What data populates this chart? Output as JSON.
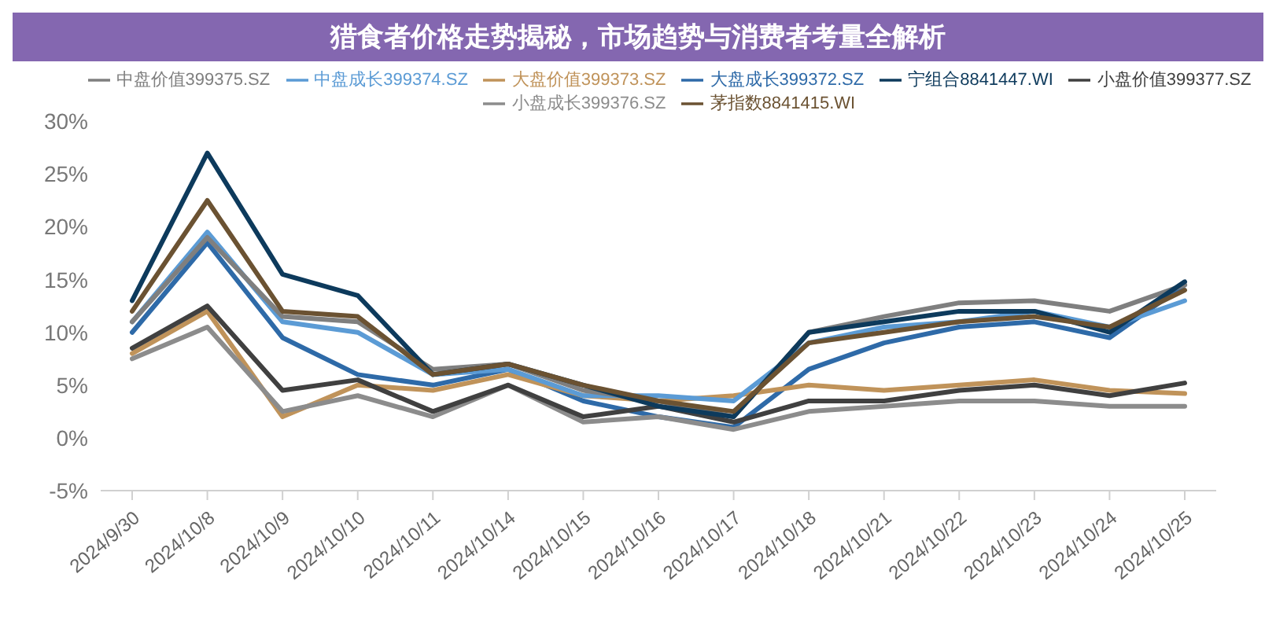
{
  "chart_data": {
    "type": "line",
    "title": "猎食者价格走势揭秘，市场趋势与消费者考量全解析",
    "categories": [
      "2024/9/30",
      "2024/10/8",
      "2024/10/9",
      "2024/10/10",
      "2024/10/11",
      "2024/10/14",
      "2024/10/15",
      "2024/10/16",
      "2024/10/17",
      "2024/10/18",
      "2024/10/21",
      "2024/10/22",
      "2024/10/23",
      "2024/10/24",
      "2024/10/25"
    ],
    "series": [
      {
        "name": "大盘成长399372.SZ",
        "color": "#2e6aa8",
        "values": [
          10,
          18.5,
          9.5,
          6,
          5,
          6.5,
          3.5,
          2,
          1,
          6.5,
          9,
          10.5,
          11,
          9.5,
          14.5
        ]
      },
      {
        "name": "大盘价值399373.SZ",
        "color": "#c0935a",
        "values": [
          8,
          12,
          2,
          5,
          4.5,
          6,
          4,
          3.5,
          4,
          5,
          4.5,
          5,
          5.5,
          4.5,
          4.2
        ]
      },
      {
        "name": "中盘成长399374.SZ",
        "color": "#5b9bd5",
        "values": [
          11,
          19.5,
          11,
          10,
          6,
          6.5,
          4,
          4,
          3.5,
          9,
          10.5,
          11,
          12,
          10.5,
          13
        ]
      },
      {
        "name": "中盘价值399375.SZ",
        "color": "#7f7f7f",
        "values": [
          11,
          19,
          11.5,
          11,
          6.5,
          7,
          4.5,
          3.5,
          2,
          10,
          11.5,
          12.8,
          13,
          12,
          14.5
        ]
      },
      {
        "name": "小盘成长399376.SZ",
        "color": "#8c8c8c",
        "values": [
          7.5,
          10.5,
          2.5,
          4,
          2,
          5,
          1.5,
          2,
          0.8,
          2.5,
          3,
          3.5,
          3.5,
          3,
          3
        ]
      },
      {
        "name": "小盘价值399377.SZ",
        "color": "#404040",
        "values": [
          8.5,
          12.5,
          4.5,
          5.5,
          2.5,
          5,
          2,
          3,
          1.5,
          3.5,
          3.5,
          4.5,
          5,
          4,
          5.2
        ]
      },
      {
        "name": "宁组合8841447.WI",
        "color": "#0d3a5c",
        "values": [
          13,
          27,
          15.5,
          13.5,
          6,
          7,
          5,
          3,
          2,
          10,
          11,
          12,
          12,
          10,
          14.8
        ]
      },
      {
        "name": "茅指数8841415.WI",
        "color": "#6b5232",
        "values": [
          12,
          22.5,
          12,
          11.5,
          6,
          7,
          5,
          3.5,
          2.5,
          9,
          10,
          11,
          11.5,
          10.5,
          14
        ]
      }
    ],
    "ylim": [
      -5,
      30
    ],
    "yticks": [
      {
        "value": -5,
        "label": "-5%"
      },
      {
        "value": 0,
        "label": "0%"
      },
      {
        "value": 5,
        "label": "5%"
      },
      {
        "value": 10,
        "label": "10%"
      },
      {
        "value": 15,
        "label": "15%"
      },
      {
        "value": 20,
        "label": "20%"
      },
      {
        "value": 25,
        "label": "25%"
      },
      {
        "value": 30,
        "label": "30%"
      }
    ],
    "grid": false,
    "legend": "top",
    "marker": "none",
    "line_style": "solid"
  }
}
